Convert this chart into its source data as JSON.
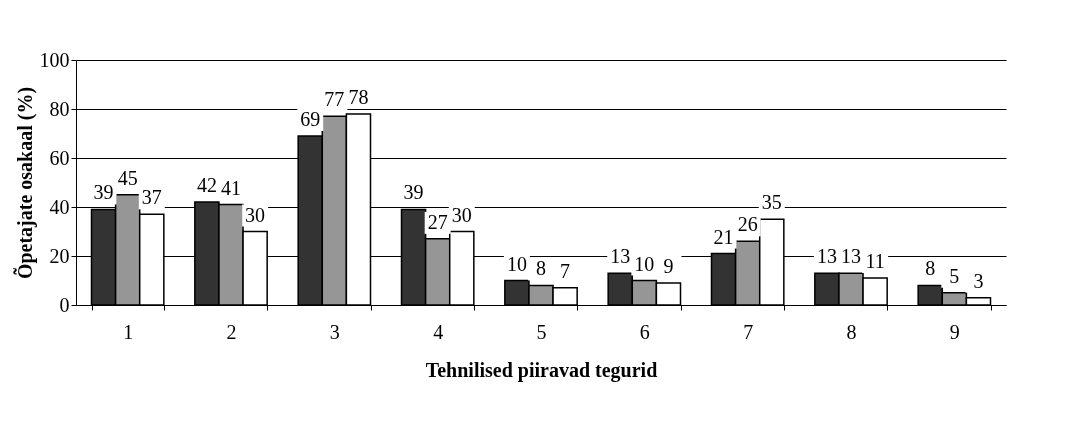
{
  "chart_data": {
    "type": "bar",
    "xlabel": "Tehnilised piiravad tegurid",
    "ylabel": "Õpetajate osakaal (%)",
    "categories": [
      "1",
      "2",
      "3",
      "4",
      "5",
      "6",
      "7",
      "8",
      "9"
    ],
    "series": [
      {
        "color": "#333333",
        "values": [
          39,
          42,
          69,
          39,
          10,
          13,
          21,
          13,
          8
        ]
      },
      {
        "color": "#969696",
        "values": [
          45,
          41,
          77,
          27,
          8,
          10,
          26,
          13,
          5
        ]
      },
      {
        "color": "#ffffff",
        "values": [
          37,
          30,
          78,
          30,
          7,
          9,
          35,
          11,
          3
        ]
      }
    ],
    "ylim": [
      0,
      100
    ],
    "yticks": [
      0,
      20,
      40,
      60,
      80,
      100
    ],
    "grid": "y",
    "legend": false,
    "data_labels": true
  }
}
